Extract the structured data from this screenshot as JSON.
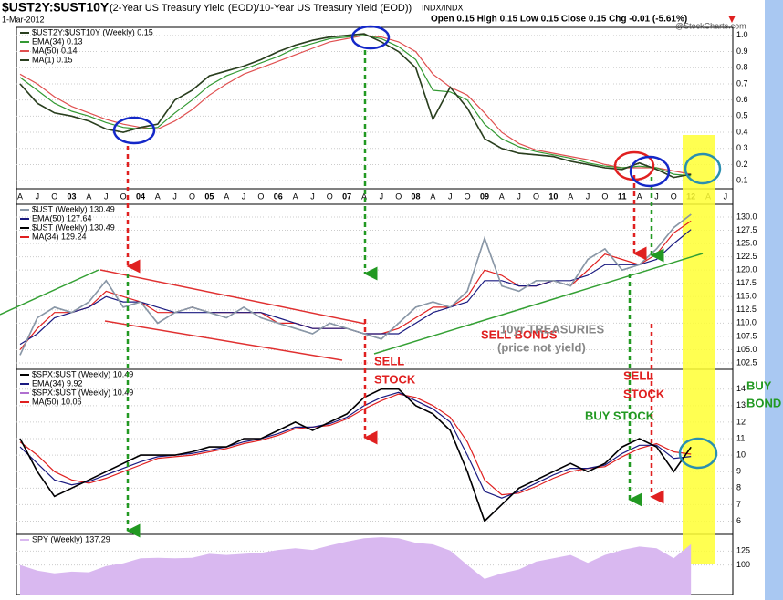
{
  "header": {
    "symbol": "$UST2Y:$UST10Y",
    "description": "(2-Year US Treasury Yield (EOD)/10-Year US Treasury Yield (EOD))",
    "exchange": "INDX/INDX",
    "date": "1-Mar-2012",
    "quote": "Open 0.15  High 0.15  Low 0.15  Close 0.15  Chg -0.01 (-5.61%)",
    "brand": "@StockCharts.com"
  },
  "annotations": [
    "SELL BONDS",
    "10yr TREASURIES",
    "(price not yield)",
    "SELL",
    "STOCK",
    "SELL",
    "STOCK",
    "BUY STOCK",
    "BUY",
    "BOND"
  ],
  "chart_data": [
    {
      "type": "line",
      "grid": true,
      "categories": [
        "A",
        "J",
        "O",
        "03",
        "A",
        "J",
        "O",
        "04",
        "A",
        "J",
        "O",
        "05",
        "A",
        "J",
        "O",
        "06",
        "A",
        "J",
        "O",
        "07",
        "A",
        "J",
        "O",
        "08",
        "A",
        "J",
        "O",
        "09",
        "A",
        "J",
        "O",
        "10",
        "A",
        "J",
        "O",
        "11",
        "A",
        "J",
        "O",
        "12",
        "A",
        "J"
      ],
      "ylim": [
        0.05,
        1.05
      ],
      "yticks": [
        0.1,
        0.2,
        0.3,
        0.4,
        0.5,
        0.6,
        0.7,
        0.8,
        0.9,
        {
          "value": 1,
          "label": "1.0"
        }
      ],
      "series": [
        {
          "name": "$UST2Y:$UST10Y (Weekly) 0.15",
          "color": "#2a3f1f",
          "values": [
            0.7,
            0.58,
            0.52,
            0.5,
            0.47,
            0.42,
            0.4,
            0.43,
            0.45,
            0.6,
            0.66,
            0.75,
            0.78,
            0.81,
            0.85,
            0.9,
            0.94,
            0.97,
            0.99,
            1.0,
            1.01,
            0.96,
            0.9,
            0.8,
            0.48,
            0.68,
            0.55,
            0.36,
            0.3,
            0.27,
            0.26,
            0.25,
            0.22,
            0.2,
            0.18,
            0.17,
            0.21,
            0.17,
            0.12,
            0.14,
            null,
            null
          ]
        },
        {
          "name": "EMA(34) 0.13",
          "color": "#339933",
          "values": [
            0.74,
            0.66,
            0.58,
            0.53,
            0.5,
            0.46,
            0.43,
            0.42,
            0.43,
            0.52,
            0.6,
            0.69,
            0.75,
            0.79,
            0.83,
            0.87,
            0.92,
            0.95,
            0.98,
            0.99,
            1.0,
            0.98,
            0.93,
            0.85,
            0.66,
            0.65,
            0.6,
            0.45,
            0.36,
            0.31,
            0.28,
            0.26,
            0.24,
            0.21,
            0.19,
            0.18,
            0.19,
            0.18,
            0.14,
            0.13,
            null,
            null
          ]
        },
        {
          "name": "MA(50) 0.14",
          "color": "#e05050",
          "values": [
            0.76,
            0.7,
            0.62,
            0.56,
            0.52,
            0.48,
            0.45,
            0.43,
            0.42,
            0.47,
            0.54,
            0.63,
            0.7,
            0.76,
            0.8,
            0.84,
            0.88,
            0.92,
            0.96,
            0.98,
            1.0,
            0.99,
            0.96,
            0.9,
            0.76,
            0.68,
            0.63,
            0.52,
            0.4,
            0.33,
            0.29,
            0.27,
            0.25,
            0.23,
            0.2,
            0.18,
            0.18,
            0.18,
            0.16,
            0.14,
            null,
            null
          ]
        },
        {
          "name": "MA(1) 0.15",
          "color": "#2a3f1f",
          "values": [
            0.7,
            0.58,
            0.52,
            0.5,
            0.47,
            0.42,
            0.4,
            0.43,
            0.45,
            0.6,
            0.66,
            0.75,
            0.78,
            0.81,
            0.85,
            0.9,
            0.94,
            0.97,
            0.99,
            1.0,
            1.01,
            0.96,
            0.9,
            0.8,
            0.48,
            0.68,
            0.55,
            0.36,
            0.3,
            0.27,
            0.26,
            0.25,
            0.22,
            0.2,
            0.18,
            0.17,
            0.21,
            0.17,
            0.12,
            0.14,
            null,
            null
          ]
        }
      ]
    },
    {
      "type": "line",
      "grid": true,
      "ylim": [
        101.3,
        132.4
      ],
      "yticks": [
        {
          "value": 130,
          "label": "130.0"
        },
        127.5,
        {
          "value": 125,
          "label": "125.0"
        },
        122.5,
        {
          "value": 120,
          "label": "120.0"
        },
        117.5,
        {
          "value": 115,
          "label": "115.0"
        },
        112.5,
        {
          "value": 110,
          "label": "110.0"
        },
        107.5,
        {
          "value": 105,
          "label": "105.0"
        },
        102.5
      ],
      "series": [
        {
          "name": "$UST (Weekly) 130.49",
          "color": "#8a98a8",
          "values": [
            104,
            111,
            113,
            112,
            114,
            118,
            113,
            114,
            110,
            112,
            113,
            112,
            111,
            113,
            111,
            110,
            109,
            108,
            110,
            109,
            108,
            107,
            110,
            113,
            114,
            113,
            116,
            126,
            117,
            116,
            118,
            118,
            117,
            122,
            124,
            120,
            121,
            124,
            128,
            130.49,
            null,
            null
          ]
        },
        {
          "name": "EMA(50) 127.64",
          "color": "#1a1a80",
          "values": [
            106,
            108,
            111,
            112,
            113,
            115,
            114,
            114,
            113,
            112,
            112,
            112,
            112,
            112,
            112,
            111,
            110,
            109,
            109,
            109,
            108,
            108,
            108,
            110,
            112,
            113,
            114,
            118,
            118,
            117,
            117,
            118,
            118,
            119,
            121,
            121,
            121,
            122,
            125,
            127.64,
            null,
            null
          ]
        },
        {
          "name": "$UST (Weekly) 130.49",
          "color": "#000000",
          "values": [
            104,
            111,
            113,
            112,
            114,
            118,
            113,
            114,
            110,
            112,
            113,
            112,
            111,
            113,
            111,
            110,
            109,
            108,
            110,
            109,
            108,
            107,
            110,
            113,
            114,
            113,
            116,
            126,
            117,
            116,
            118,
            118,
            117,
            122,
            124,
            120,
            121,
            124,
            128,
            130.49,
            null,
            null
          ]
        },
        {
          "name": "MA(34) 129.24",
          "color": "#e02020",
          "values": [
            105,
            109,
            112,
            112,
            113,
            116,
            115,
            114,
            112,
            112,
            113,
            112,
            112,
            112,
            112,
            110,
            110,
            109,
            109,
            109,
            108,
            108,
            109,
            111,
            113,
            113,
            115,
            120,
            119,
            117,
            117,
            118,
            117,
            120,
            123,
            122,
            121,
            123,
            127,
            129.24,
            null,
            null
          ]
        }
      ]
    },
    {
      "type": "line",
      "grid": true,
      "ylim": [
        5.2,
        15.2
      ],
      "yticks": [
        6,
        7,
        8,
        9,
        10,
        11,
        12,
        13,
        14
      ],
      "series": [
        {
          "name": "$SPX:$UST (Weekly) 10.49",
          "color": "#000000",
          "values": [
            11,
            9,
            7.5,
            8,
            8.5,
            9,
            9.5,
            10,
            10,
            10,
            10.2,
            10.5,
            10.5,
            11,
            11,
            11.5,
            12,
            11.5,
            12,
            12.5,
            13.5,
            14,
            14,
            13,
            12.5,
            11.5,
            9,
            6,
            7,
            8,
            8.5,
            9,
            9.5,
            9,
            9.5,
            10.5,
            11,
            10.5,
            9,
            10.49,
            null,
            null
          ]
        },
        {
          "name": "EMA(34) 9.92",
          "color": "#1a1a80",
          "values": [
            10.5,
            9.5,
            8.5,
            8.2,
            8.4,
            8.8,
            9.2,
            9.6,
            9.9,
            10,
            10.1,
            10.3,
            10.5,
            10.8,
            11,
            11.3,
            11.7,
            11.7,
            11.9,
            12.3,
            13,
            13.5,
            13.8,
            13.3,
            12.8,
            12,
            10,
            7.8,
            7.4,
            7.8,
            8.3,
            8.8,
            9.2,
            9.2,
            9.4,
            10.1,
            10.6,
            10.6,
            9.8,
            9.92,
            null,
            null
          ]
        },
        {
          "name": "$SPX:$UST (Weekly) 10.49",
          "color": "#b070d0",
          "values": [
            11,
            9,
            7.5,
            8,
            8.5,
            9,
            9.5,
            10,
            10,
            10,
            10.2,
            10.5,
            10.5,
            11,
            11,
            11.5,
            12,
            11.5,
            12,
            12.5,
            13.5,
            14,
            14,
            13,
            12.5,
            11.5,
            9,
            6,
            7,
            8,
            8.5,
            9,
            9.5,
            9,
            9.5,
            10.5,
            11,
            10.5,
            9,
            10.49,
            null,
            null
          ]
        },
        {
          "name": "MA(50) 10.06",
          "color": "#e02020",
          "values": [
            10.8,
            10,
            9,
            8.5,
            8.3,
            8.6,
            9,
            9.4,
            9.8,
            9.9,
            10,
            10.2,
            10.4,
            10.7,
            10.9,
            11.2,
            11.6,
            11.7,
            11.8,
            12.2,
            12.8,
            13.3,
            13.7,
            13.5,
            13,
            12.3,
            10.8,
            8.5,
            7.6,
            7.7,
            8.1,
            8.6,
            9,
            9.2,
            9.3,
            9.9,
            10.4,
            10.7,
            10.2,
            10.06,
            null,
            null
          ]
        }
      ]
    },
    {
      "type": "area",
      "grid": true,
      "ylim": [
        47,
        155
      ],
      "yticks": [
        100,
        125
      ],
      "series": [
        {
          "name": "SPY (Weekly) 137.29",
          "color": "#d9b8f0",
          "values": [
            100,
            90,
            85,
            88,
            87,
            98,
            103,
            112,
            113,
            112,
            113,
            120,
            118,
            120,
            122,
            127,
            130,
            127,
            135,
            142,
            148,
            150,
            148,
            140,
            137,
            126,
            100,
            75,
            85,
            92,
            106,
            112,
            118,
            104,
            118,
            127,
            133,
            130,
            112,
            137.29,
            null,
            null
          ]
        }
      ]
    }
  ]
}
